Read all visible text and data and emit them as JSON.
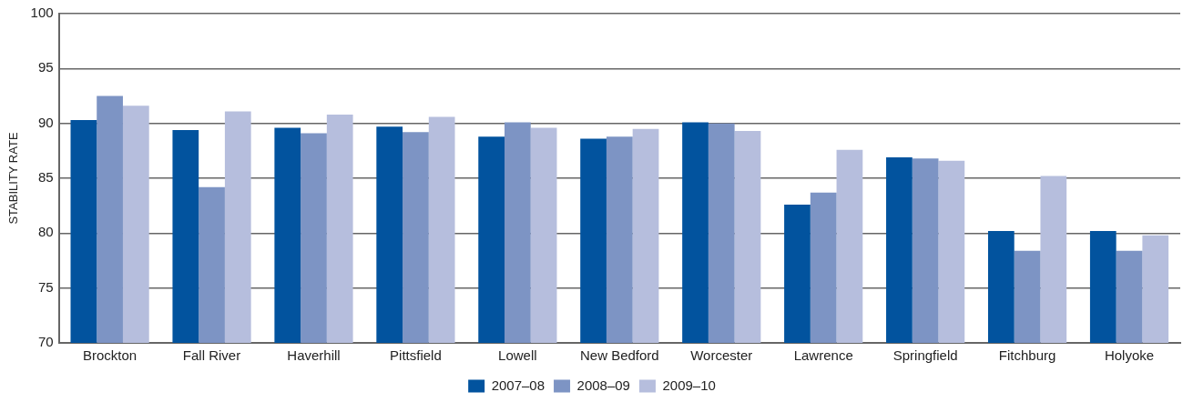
{
  "chart_data": {
    "type": "bar",
    "ylabel": "STABILITY RATE",
    "categories": [
      "Brockton",
      "Fall River",
      "Haverhill",
      "Pittsfield",
      "Lowell",
      "New Bedford",
      "Worcester",
      "Lawrence",
      "Springfield",
      "Fitchburg",
      "Holyoke"
    ],
    "series": [
      {
        "name": "2007–08",
        "color": "#02539e",
        "values": [
          90.3,
          89.4,
          89.6,
          89.7,
          88.8,
          88.6,
          90.1,
          82.6,
          86.9,
          80.2,
          80.2
        ]
      },
      {
        "name": "2008–09",
        "color": "#7d94c4",
        "values": [
          92.5,
          84.2,
          89.1,
          89.2,
          90.1,
          88.8,
          90.0,
          83.7,
          86.8,
          78.4,
          78.4
        ]
      },
      {
        "name": "2009–10",
        "color": "#b6bedd",
        "values": [
          91.6,
          91.1,
          90.8,
          90.6,
          89.6,
          89.5,
          89.3,
          87.6,
          86.6,
          85.2,
          79.8
        ]
      }
    ],
    "ylim": [
      70,
      100
    ],
    "yticks": [
      70,
      75,
      80,
      85,
      90,
      95,
      100
    ],
    "grid": "y",
    "legend": "bottom"
  }
}
